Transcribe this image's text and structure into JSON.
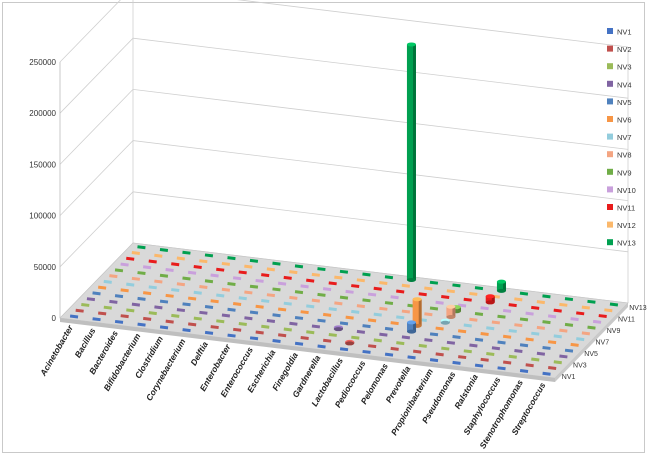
{
  "chart_data": {
    "type": "bar",
    "style": "3d-column",
    "y_ticks": [
      "0",
      "50000",
      "100000",
      "150000",
      "200000",
      "250000"
    ],
    "ylim": [
      0,
      250000
    ],
    "categories": [
      "Acinetobacter",
      "Bacillus",
      "Bacteroides",
      "Bifidobacterium",
      "Clostridium",
      "Corynebacterium",
      "Delftia",
      "Enterobacter",
      "Enterococcus",
      "Escherichia",
      "Finegoldia",
      "Gardnerella",
      "Lactobacillus",
      "Pediococcus",
      "Pelomonas",
      "Prevotella",
      "Propionibacterium",
      "Pseudomonas",
      "Ralstonia",
      "Staphylococcus",
      "Stenotrophomonas",
      "Streptococcus"
    ],
    "depth_axis_labels": [
      "NV1",
      "NV3",
      "NV5",
      "NV7",
      "NV9",
      "NV11",
      "NV13"
    ],
    "legend_position": "right",
    "series": [
      {
        "name": "NV1",
        "color": "#4472c4",
        "values": [
          0,
          0,
          0,
          0,
          0,
          0,
          0,
          0,
          0,
          0,
          0,
          0,
          0,
          0,
          0,
          0,
          0,
          0,
          0,
          0,
          0,
          0
        ]
      },
      {
        "name": "NV2",
        "color": "#c0504d",
        "values": [
          0,
          0,
          0,
          0,
          0,
          0,
          0,
          0,
          0,
          0,
          0,
          0,
          1500,
          0,
          0,
          0,
          0,
          0,
          0,
          0,
          0,
          0
        ]
      },
      {
        "name": "NV3",
        "color": "#9bbb59",
        "values": [
          0,
          0,
          0,
          0,
          0,
          0,
          0,
          0,
          0,
          0,
          0,
          0,
          0,
          0,
          0,
          0,
          0,
          0,
          0,
          0,
          0,
          0
        ]
      },
      {
        "name": "NV4",
        "color": "#8064a2",
        "values": [
          0,
          0,
          0,
          0,
          0,
          0,
          0,
          0,
          0,
          0,
          0,
          1800,
          0,
          0,
          0,
          0,
          0,
          0,
          0,
          0,
          0,
          0
        ]
      },
      {
        "name": "NV5",
        "color": "#4f81bd",
        "values": [
          0,
          0,
          0,
          0,
          0,
          0,
          0,
          0,
          0,
          0,
          0,
          0,
          0,
          0,
          9000,
          0,
          0,
          0,
          0,
          0,
          0,
          0
        ]
      },
      {
        "name": "NV6",
        "color": "#f79646",
        "values": [
          0,
          0,
          0,
          0,
          0,
          0,
          0,
          0,
          0,
          0,
          0,
          0,
          0,
          0,
          26000,
          0,
          0,
          0,
          0,
          0,
          0,
          0
        ]
      },
      {
        "name": "NV7",
        "color": "#93cddd",
        "values": [
          0,
          0,
          0,
          0,
          0,
          0,
          0,
          0,
          0,
          0,
          0,
          0,
          0,
          0,
          0,
          2000,
          0,
          0,
          0,
          0,
          0,
          0
        ]
      },
      {
        "name": "NV8",
        "color": "#f4a582",
        "values": [
          0,
          0,
          0,
          0,
          0,
          0,
          0,
          0,
          0,
          0,
          0,
          0,
          0,
          0,
          0,
          10000,
          0,
          0,
          0,
          0,
          0,
          0
        ]
      },
      {
        "name": "NV9",
        "color": "#70ad47",
        "values": [
          0,
          0,
          0,
          0,
          0,
          0,
          0,
          0,
          0,
          0,
          0,
          0,
          0,
          0,
          0,
          4000,
          0,
          0,
          0,
          0,
          0,
          0
        ]
      },
      {
        "name": "NV10",
        "color": "#c9a0dc",
        "values": [
          0,
          0,
          0,
          0,
          0,
          0,
          0,
          0,
          0,
          0,
          0,
          0,
          0,
          0,
          0,
          0,
          0,
          0,
          0,
          0,
          0,
          0
        ]
      },
      {
        "name": "NV11",
        "color": "#e81c1c",
        "values": [
          0,
          0,
          0,
          0,
          0,
          0,
          0,
          0,
          0,
          0,
          0,
          0,
          0,
          0,
          0,
          0,
          6000,
          0,
          0,
          0,
          0,
          0
        ]
      },
      {
        "name": "NV12",
        "color": "#fbb86b",
        "values": [
          0,
          0,
          0,
          0,
          0,
          0,
          0,
          0,
          0,
          0,
          0,
          0,
          0,
          0,
          0,
          0,
          0,
          0,
          0,
          0,
          0,
          0
        ]
      },
      {
        "name": "NV13",
        "color": "#00a050",
        "values": [
          0,
          0,
          0,
          0,
          0,
          0,
          0,
          0,
          0,
          0,
          0,
          0,
          230000,
          0,
          0,
          0,
          9000,
          0,
          0,
          0,
          0,
          0
        ]
      }
    ]
  }
}
